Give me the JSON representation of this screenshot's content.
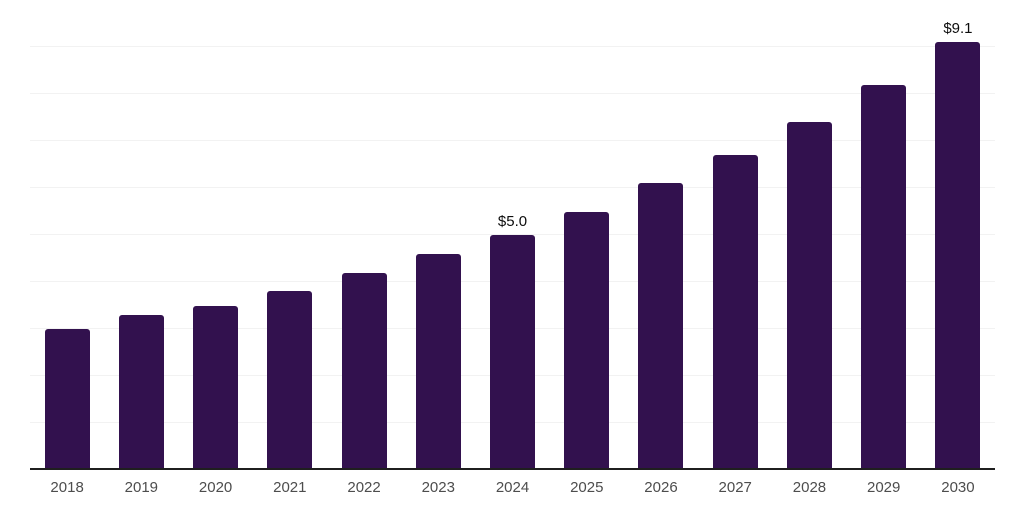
{
  "chart_data": {
    "type": "bar",
    "title": "",
    "xlabel": "",
    "ylabel": "",
    "categories": [
      "2018",
      "2019",
      "2020",
      "2021",
      "2022",
      "2023",
      "2024",
      "2025",
      "2026",
      "2027",
      "2028",
      "2029",
      "2030"
    ],
    "values": [
      3.0,
      3.3,
      3.5,
      3.8,
      4.2,
      4.6,
      5.0,
      5.5,
      6.1,
      6.7,
      7.4,
      8.2,
      9.1
    ],
    "data_labels": [
      "",
      "",
      "",
      "",
      "",
      "",
      "$5.0",
      "",
      "",
      "",
      "",
      "",
      "$9.1"
    ],
    "ylim": [
      0,
      10
    ],
    "grid_interval": 1,
    "grid": "horizontal",
    "legend": "none",
    "colors": {
      "bar": "#32114E",
      "gridline": "#f2f2f2",
      "axis_line": "#1f1f1f",
      "tick_label": "#4d4d4d",
      "data_label": "#0d0d0d",
      "background": "#ffffff"
    }
  }
}
